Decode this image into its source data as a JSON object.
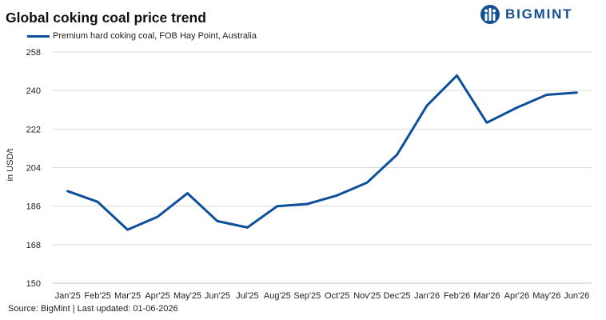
{
  "header": {
    "title": "Global coking coal price trend",
    "brand": "BIGMINT"
  },
  "footer": {
    "source": "Source: BigMint | Last updated: 01-06-2026"
  },
  "colors": {
    "series": "#0d4f9c",
    "brand": "#14508f",
    "grid": "#d9d9d9"
  },
  "chart_data": {
    "type": "line",
    "title": "Global coking coal price trend",
    "ylabel": "in USD/t",
    "xlabel": "",
    "ylim": [
      150,
      258
    ],
    "yticks": [
      150,
      168,
      186,
      204,
      222,
      240,
      258
    ],
    "grid": true,
    "legend_position": "top-left",
    "categories": [
      "Jan'25",
      "Feb'25",
      "Mar'25",
      "Apr'25",
      "May'25",
      "Jun'25",
      "Jul'25",
      "Aug'25",
      "Sep'25",
      "Oct'25",
      "Nov'25",
      "Dec'25",
      "Jan'26",
      "Feb'26",
      "Mar'26",
      "Apr'26",
      "May'26",
      "Jun'26"
    ],
    "series": [
      {
        "name": "Premium hard coking coal, FOB Hay Point, Australia",
        "values": [
          193,
          188,
          175,
          181,
          192,
          179,
          176,
          186,
          187,
          191,
          197,
          210,
          233,
          247,
          225,
          232,
          238,
          239
        ]
      }
    ]
  }
}
